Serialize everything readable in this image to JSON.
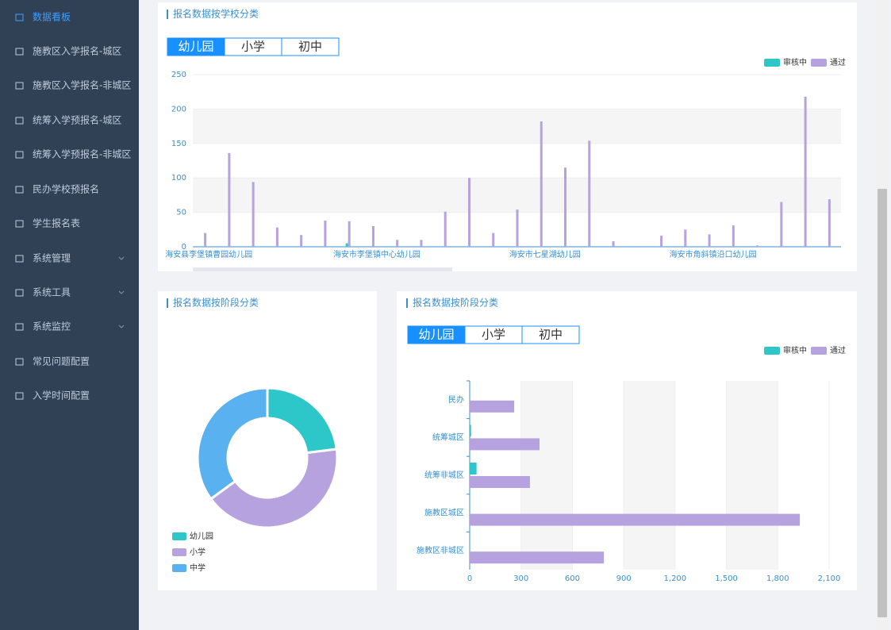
{
  "sidebar": {
    "items": [
      "数据看板",
      "施教区入学报名-城区",
      "施教区入学报名-非城区",
      "统筹入学预报名-城区",
      "统筹入学预报名-非城区",
      "民办学校预报名",
      "学生报名表",
      "系统管理",
      "系统工具",
      "系统监控",
      "常见问题配置",
      "入学时间配置"
    ]
  },
  "chart_data": [
    {
      "type": "bar",
      "title": "报名数据按学校分类",
      "tabs": [
        "幼儿园",
        "小学",
        "初中"
      ],
      "categories": [
        "海安县李堡镇曹园幼儿园",
        null,
        null,
        null,
        null,
        null,
        null,
        "海安市李堡镇中心幼儿园",
        null,
        null,
        null,
        null,
        null,
        null,
        "海安市七星湖幼儿园",
        null,
        null,
        null,
        null,
        null,
        null,
        "海安市角斜镇沿口幼儿园",
        null,
        null,
        null,
        null,
        null
      ],
      "series": [
        {
          "name": "审核中",
          "color": "#2ec7c9",
          "values": [
            0,
            0,
            0,
            0,
            0,
            0,
            5,
            0,
            0,
            0,
            0,
            0,
            0,
            0,
            0,
            0,
            0,
            0,
            0,
            0,
            0,
            0,
            0,
            0,
            0,
            0,
            0
          ]
        },
        {
          "name": "通过",
          "color": "#b6a2de",
          "values": [
            20,
            136,
            94,
            28,
            17,
            38,
            37,
            30,
            10,
            10,
            51,
            100,
            20,
            54,
            182,
            115,
            154,
            8,
            1,
            16,
            25,
            18,
            31,
            2,
            65,
            218,
            69
          ]
        }
      ],
      "ylim": [
        0,
        250
      ],
      "yticks": [
        0,
        50,
        100,
        150,
        200,
        250
      ],
      "grid": true,
      "legend": "top-right"
    },
    {
      "type": "pie",
      "title": "报名数据按阶段分类",
      "categories": [
        "幼儿园",
        "小学",
        "中学"
      ],
      "values": [
        23,
        42,
        35
      ],
      "colors": [
        "#2ec7c9",
        "#b6a2de",
        "#5ab1ef"
      ],
      "donut": true,
      "legend": "bottom-left"
    },
    {
      "type": "bar",
      "horizontal": true,
      "title": "报名数据按阶段分类",
      "tabs": [
        "幼儿园",
        "小学",
        "初中"
      ],
      "categories": [
        "民办",
        "统筹城区",
        "统筹非城区",
        "施教区城区",
        "施教区非城区"
      ],
      "series": [
        {
          "name": "审核中",
          "color": "#2ec7c9",
          "values": [
            0,
            8,
            40,
            0,
            0
          ]
        },
        {
          "name": "通过",
          "color": "#b6a2de",
          "values": [
            260,
            408,
            352,
            1929,
            784
          ]
        }
      ],
      "xlim": [
        0,
        2100
      ],
      "xticks": [
        0,
        300,
        600,
        900,
        {
          "value": 1200,
          "label": "1,200"
        },
        {
          "value": 1500,
          "label": "1,500"
        },
        {
          "value": 1800,
          "label": "1,800"
        },
        {
          "value": 2100,
          "label": "2,100"
        }
      ],
      "grid": true,
      "legend": "top-right"
    }
  ]
}
